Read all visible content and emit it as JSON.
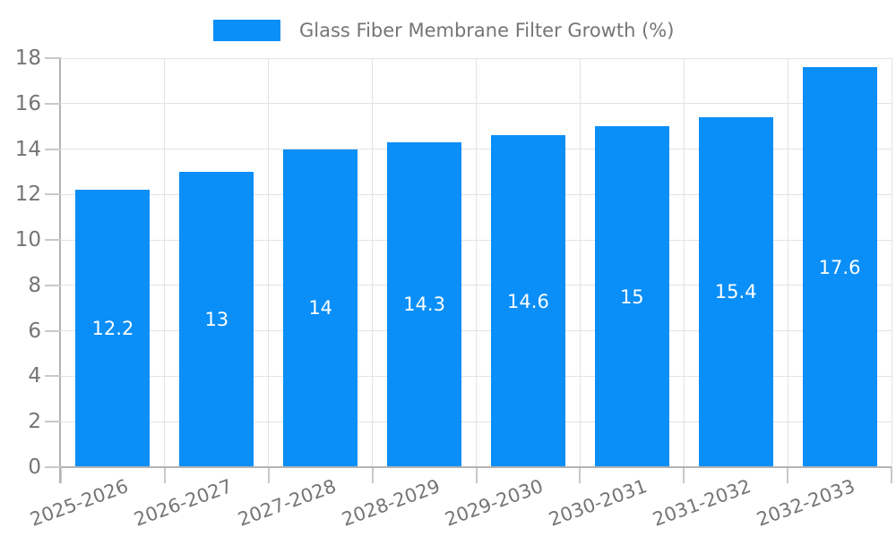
{
  "chart_data": {
    "type": "bar",
    "title": "",
    "legend": "Glass Fiber Membrane Filter Growth (%)",
    "legend_position": "top",
    "categories": [
      "2025-2026",
      "2026-2027",
      "2027-2028",
      "2028-2029",
      "2029-2030",
      "2030-2031",
      "2031-2032",
      "2032-2033"
    ],
    "values": [
      12.2,
      13,
      14,
      14.3,
      14.6,
      15,
      15.4,
      17.6
    ],
    "value_labels": [
      "12.2",
      "13",
      "14",
      "14.3",
      "14.6",
      "15",
      "15.4",
      "17.6"
    ],
    "xlabel": "",
    "ylabel": "",
    "ylim": [
      0,
      18
    ],
    "ytick_step": 2,
    "ytick_labels": [
      "0",
      "2",
      "4",
      "6",
      "8",
      "10",
      "12",
      "14",
      "16",
      "18"
    ],
    "grid": true,
    "colors": {
      "bar": "#0a8ef7",
      "text": "#757575",
      "grid": "#e3e3e3",
      "tick": "#c9c9c9",
      "axis": "#b3b3b3",
      "value_label": "#ffffff",
      "background": "#ffffff"
    }
  }
}
